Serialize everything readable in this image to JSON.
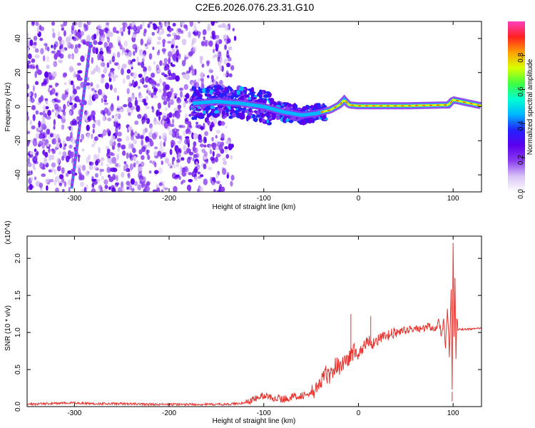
{
  "figure_title": "C2E6.2026.076.23.31.G10",
  "chart_data": [
    {
      "type": "heatmap",
      "title": "C2E6.2026.076.23.31.G10",
      "xlabel": "Height of straight line (km)",
      "ylabel": "Frequency (Hz)",
      "xlim": [
        -350,
        130
      ],
      "ylim": [
        -50,
        50
      ],
      "xticks": [
        -300,
        -200,
        -100,
        0,
        100
      ],
      "yticks": [
        -40,
        -20,
        0,
        20,
        40
      ],
      "grid": false,
      "colorbar": {
        "label": "Normalized spectral amplitude",
        "range": [
          0,
          1
        ],
        "ticks": [
          "0.0",
          "0.2",
          "0.4",
          "0.6",
          "0.8"
        ],
        "colormap": [
          "#ffffff",
          "#d9c4f5",
          "#8a3cf0",
          "#5b00ee",
          "#2222ff",
          "#00b8ff",
          "#00ffd0",
          "#40ff40",
          "#d8ff00",
          "#ffa000",
          "#ff2020",
          "#ff40c0"
        ]
      },
      "features": [
        {
          "name": "diagonal streak",
          "x": [
            -303,
            -283
          ],
          "y": [
            -48,
            38
          ],
          "amplitude": 0.3
        },
        {
          "name": "dense band",
          "x": [
            -175,
            -40
          ],
          "y": [
            -8,
            10
          ],
          "amplitude": 0.35
        },
        {
          "name": "carrier line",
          "x": [
            -40,
            130
          ],
          "y": [
            0,
            1
          ],
          "amplitude": 0.85
        }
      ],
      "ridge": {
        "x": [
          -175,
          -150,
          -125,
          -100,
          -80,
          -60,
          -45,
          -30,
          -20,
          -15,
          -10,
          0,
          50,
          95,
          100,
          130
        ],
        "y": [
          2,
          3,
          2,
          0,
          -3,
          -5,
          -4,
          -2,
          1,
          4,
          1,
          0.5,
          0.5,
          1,
          4,
          0.5
        ]
      }
    },
    {
      "type": "line",
      "xlabel": "Height of straight line (km)",
      "ylabel": "SNR (10 * v/v)",
      "y_multiplier": "(x10^4)",
      "xlim": [
        -350,
        130
      ],
      "ylim": [
        0,
        2.3
      ],
      "xticks": [
        -300,
        -200,
        -100,
        0,
        100
      ],
      "yticks": [
        0.0,
        0.5,
        1.0,
        1.5,
        2.0
      ],
      "grid": false,
      "color": "#e8322d",
      "series": [
        {
          "x": [
            -350,
            -330,
            -300,
            -280,
            -250,
            -220,
            -200,
            -180,
            -160,
            -140,
            -120,
            -110,
            -100,
            -90,
            -80,
            -70,
            -60,
            -50,
            -45,
            -40,
            -35,
            -30,
            -25,
            -20,
            -15,
            -10,
            -5,
            0,
            5,
            10,
            15,
            20,
            30,
            40,
            50,
            60,
            70,
            75,
            80,
            85,
            88,
            90,
            92,
            94,
            96,
            98,
            99,
            100,
            101,
            102,
            103,
            104,
            105,
            110,
            120,
            130
          ],
          "y": [
            0.03,
            0.04,
            0.05,
            0.04,
            0.04,
            0.03,
            0.03,
            0.03,
            0.03,
            0.03,
            0.05,
            0.1,
            0.15,
            0.12,
            0.1,
            0.13,
            0.15,
            0.17,
            0.25,
            0.3,
            0.45,
            0.4,
            0.55,
            0.55,
            0.6,
            0.65,
            0.75,
            0.7,
            0.8,
            0.9,
            0.85,
            0.9,
            0.95,
            1.0,
            1.03,
            1.05,
            1.05,
            1.1,
            1.0,
            1.15,
            0.95,
            1.2,
            0.8,
            1.35,
            0.7,
            1.6,
            0.2,
            2.25,
            0.9,
            1.7,
            0.6,
            1.2,
            1.05,
            1.04,
            1.05,
            1.05
          ]
        }
      ],
      "spikes": [
        {
          "x": -8,
          "y": 1.25
        },
        {
          "x": 13,
          "y": 1.22
        },
        {
          "x": 100,
          "y": 2.25
        },
        {
          "x": 102,
          "y": 1.72
        },
        {
          "x": 99,
          "y": 0.07
        }
      ]
    }
  ]
}
